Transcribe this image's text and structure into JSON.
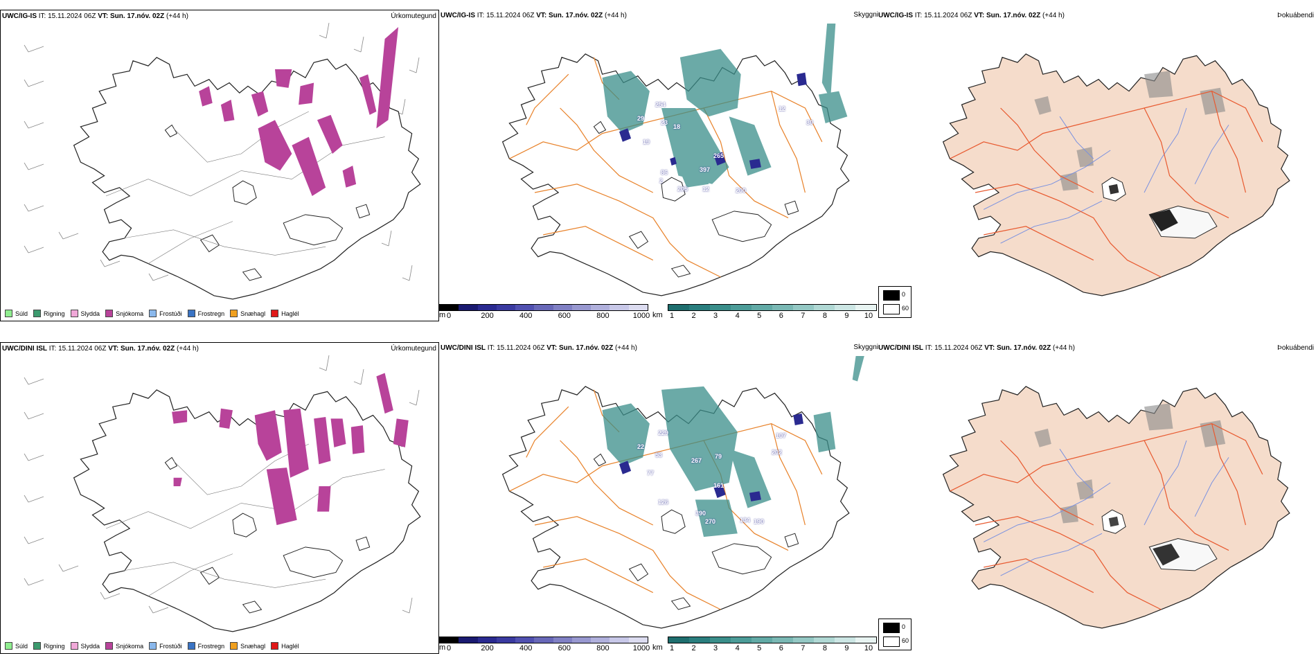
{
  "rows": [
    {
      "model": "UWC/IG-IS",
      "it_label": "IT:",
      "it_value": "15.11.2024 06Z",
      "vt_label": "VT:",
      "vt_value": "Sun. 17.nóv. 02Z",
      "lead": "(+44 h)",
      "values": [
        "254",
        "29",
        "23",
        "19",
        "18",
        "265",
        "397",
        "86",
        "2",
        "205",
        "12",
        "200",
        "12",
        "30"
      ]
    },
    {
      "model": "UWC/DINI ISL",
      "it_label": "IT:",
      "it_value": "15.11.2024 06Z",
      "vt_label": "VT:",
      "vt_value": "Sun. 17.nóv. 02Z",
      "lead": "(+44 h)",
      "values": [
        "229",
        "22",
        "53",
        "267",
        "77",
        "79",
        "161",
        "126",
        "390",
        "270",
        "134",
        "190",
        "107",
        "202"
      ]
    }
  ],
  "panel_types": {
    "precip": "Úrkomutegund",
    "cloud": "Skyggni",
    "fog": "Þokuábendi"
  },
  "precip_legend": [
    {
      "label": "Súld",
      "color": "#90ee90"
    },
    {
      "label": "Rigning",
      "color": "#3c9a6e"
    },
    {
      "label": "Slydda",
      "color": "#f0a8d8"
    },
    {
      "label": "Snjókoma",
      "color": "#b8439a"
    },
    {
      "label": "Frostúði",
      "color": "#8ab8ec"
    },
    {
      "label": "Frostregn",
      "color": "#3a74c4"
    },
    {
      "label": "Snæhagl",
      "color": "#f0a020"
    },
    {
      "label": "Haglél",
      "color": "#e01818"
    }
  ],
  "cloudbase_scale": {
    "unit": "m",
    "ticks": [
      "0",
      "200",
      "400",
      "600",
      "800",
      "1000"
    ],
    "colors": [
      "#000000",
      "#1a1a70",
      "#2a2a90",
      "#3a3aa0",
      "#5050b0",
      "#6868b8",
      "#8080c4",
      "#9898d0",
      "#b0b0dc",
      "#c8c8e8",
      "#dcdcf0"
    ]
  },
  "visibility_scale": {
    "unit": "km",
    "ticks": [
      "1",
      "2",
      "3",
      "4",
      "5",
      "6",
      "7",
      "8",
      "9",
      "10"
    ],
    "colors": [
      "#1e6e6e",
      "#2a7e7e",
      "#3a8e8a",
      "#4c9c98",
      "#62aaa6",
      "#7ab8b4",
      "#94c8c4",
      "#b0d8d4",
      "#cce6e4",
      "#e8f4f2"
    ]
  },
  "fog_legend": [
    {
      "label": "0",
      "color": "#000000"
    },
    {
      "label": "60",
      "color": "#ffffff"
    }
  ],
  "colors": {
    "coast": "#222222",
    "roads": "#e8822a",
    "land_fog": "#f5dccb",
    "rivers": "#7890e0",
    "snow": "#b8439a",
    "visibility": "#3a8e8a"
  }
}
